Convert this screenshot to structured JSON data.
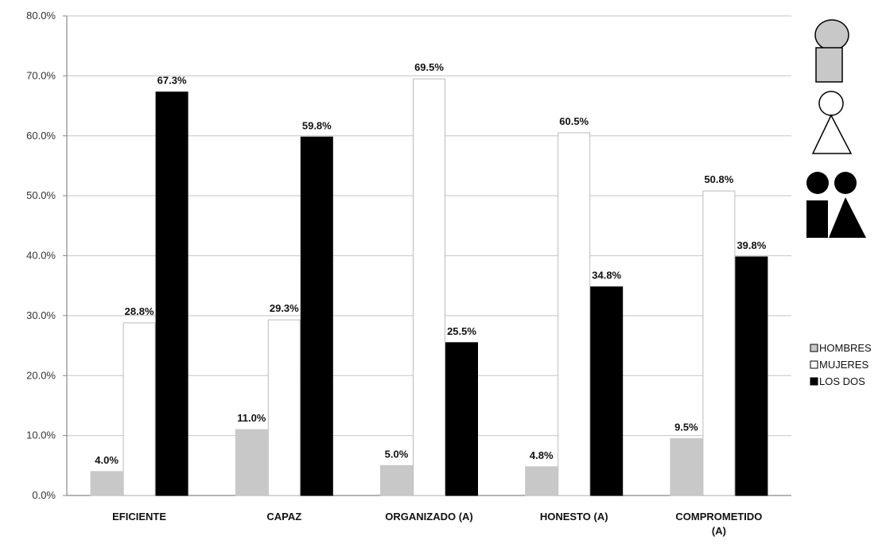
{
  "chart_data": {
    "type": "bar",
    "categories": [
      [
        "EFICIENTE"
      ],
      [
        "CAPAZ"
      ],
      [
        "ORGANIZADO (A)"
      ],
      [
        "HONESTO (A)"
      ],
      [
        "COMPROMETIDO",
        "(A)"
      ]
    ],
    "series": [
      {
        "name": "HOMBRES",
        "color": "#c8c8c8",
        "values": [
          4.0,
          11.0,
          5.0,
          4.8,
          9.5
        ],
        "labels": [
          "4.0%",
          "11.0%",
          "5.0%",
          "4.8%",
          "9.5%"
        ]
      },
      {
        "name": "MUJERES",
        "color": "#ffffff",
        "values": [
          28.8,
          29.3,
          69.5,
          60.5,
          50.8
        ],
        "labels": [
          "28.8%",
          "29.3%",
          "69.5%",
          "60.5%",
          "50.8%"
        ]
      },
      {
        "name": "LOS DOS",
        "color": "#000000",
        "values": [
          67.3,
          59.8,
          25.5,
          34.8,
          39.8
        ],
        "labels": [
          "67.3%",
          "59.8%",
          "25.5%",
          "34.8%",
          "39.8%"
        ]
      }
    ],
    "ylim": [
      0,
      80
    ],
    "yticks": [
      0,
      10,
      20,
      30,
      40,
      50,
      60,
      70,
      80
    ],
    "ytick_labels": [
      "0.0%",
      "10.0%",
      "20.0%",
      "30.0%",
      "40.0%",
      "50.0%",
      "60.0%",
      "70.0%",
      "80.0%"
    ],
    "grid": true,
    "legend_position": "right",
    "title": "",
    "xlabel": "",
    "ylabel": ""
  },
  "icons": [
    "man-figure-icon",
    "woman-figure-icon",
    "couple-figure-icon"
  ]
}
